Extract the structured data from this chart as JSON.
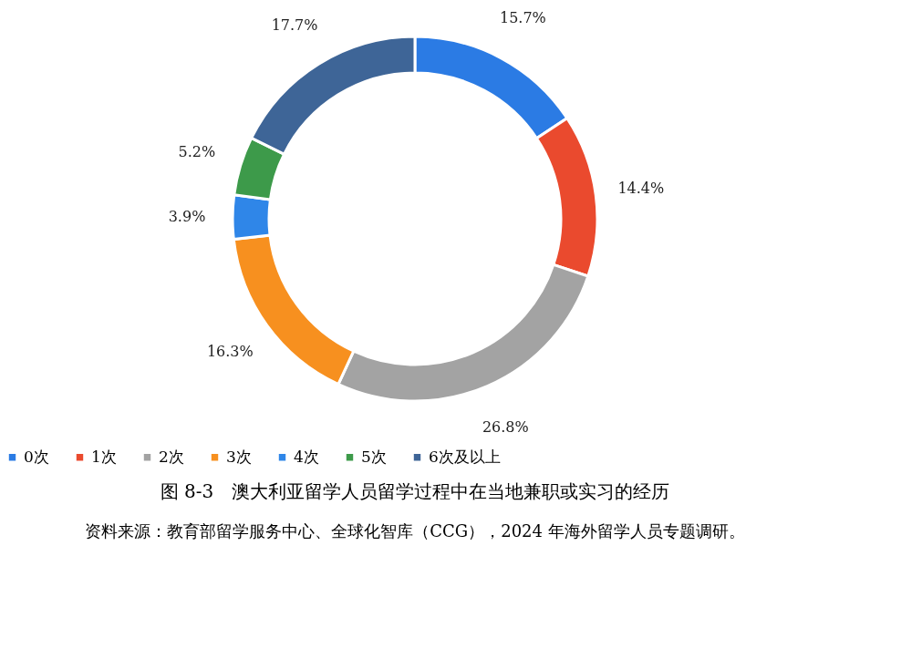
{
  "chart_data": {
    "type": "donut",
    "title": "图 8-3　澳大利亚留学人员留学过程中在当地兼职或实习的经历",
    "categories": [
      "0次",
      "1次",
      "2次",
      "3次",
      "4次",
      "5次",
      "6次及以上"
    ],
    "values": [
      15.7,
      14.4,
      26.8,
      16.3,
      3.9,
      5.2,
      17.7
    ],
    "colors": [
      "#2b7be4",
      "#ea4a2e",
      "#a3a3a3",
      "#f7901f",
      "#2f86e8",
      "#3d9a4a",
      "#3e6597"
    ],
    "value_labels": [
      "15.7%",
      "14.4%",
      "26.8%",
      "16.3%",
      "3.9%",
      "5.2%",
      "17.7%"
    ],
    "legend": "bottom",
    "annotations": [
      "资料来源：教育部留学服务中心、全球化智库（CCG），2024 年海外留学人员专题调研。"
    ]
  }
}
